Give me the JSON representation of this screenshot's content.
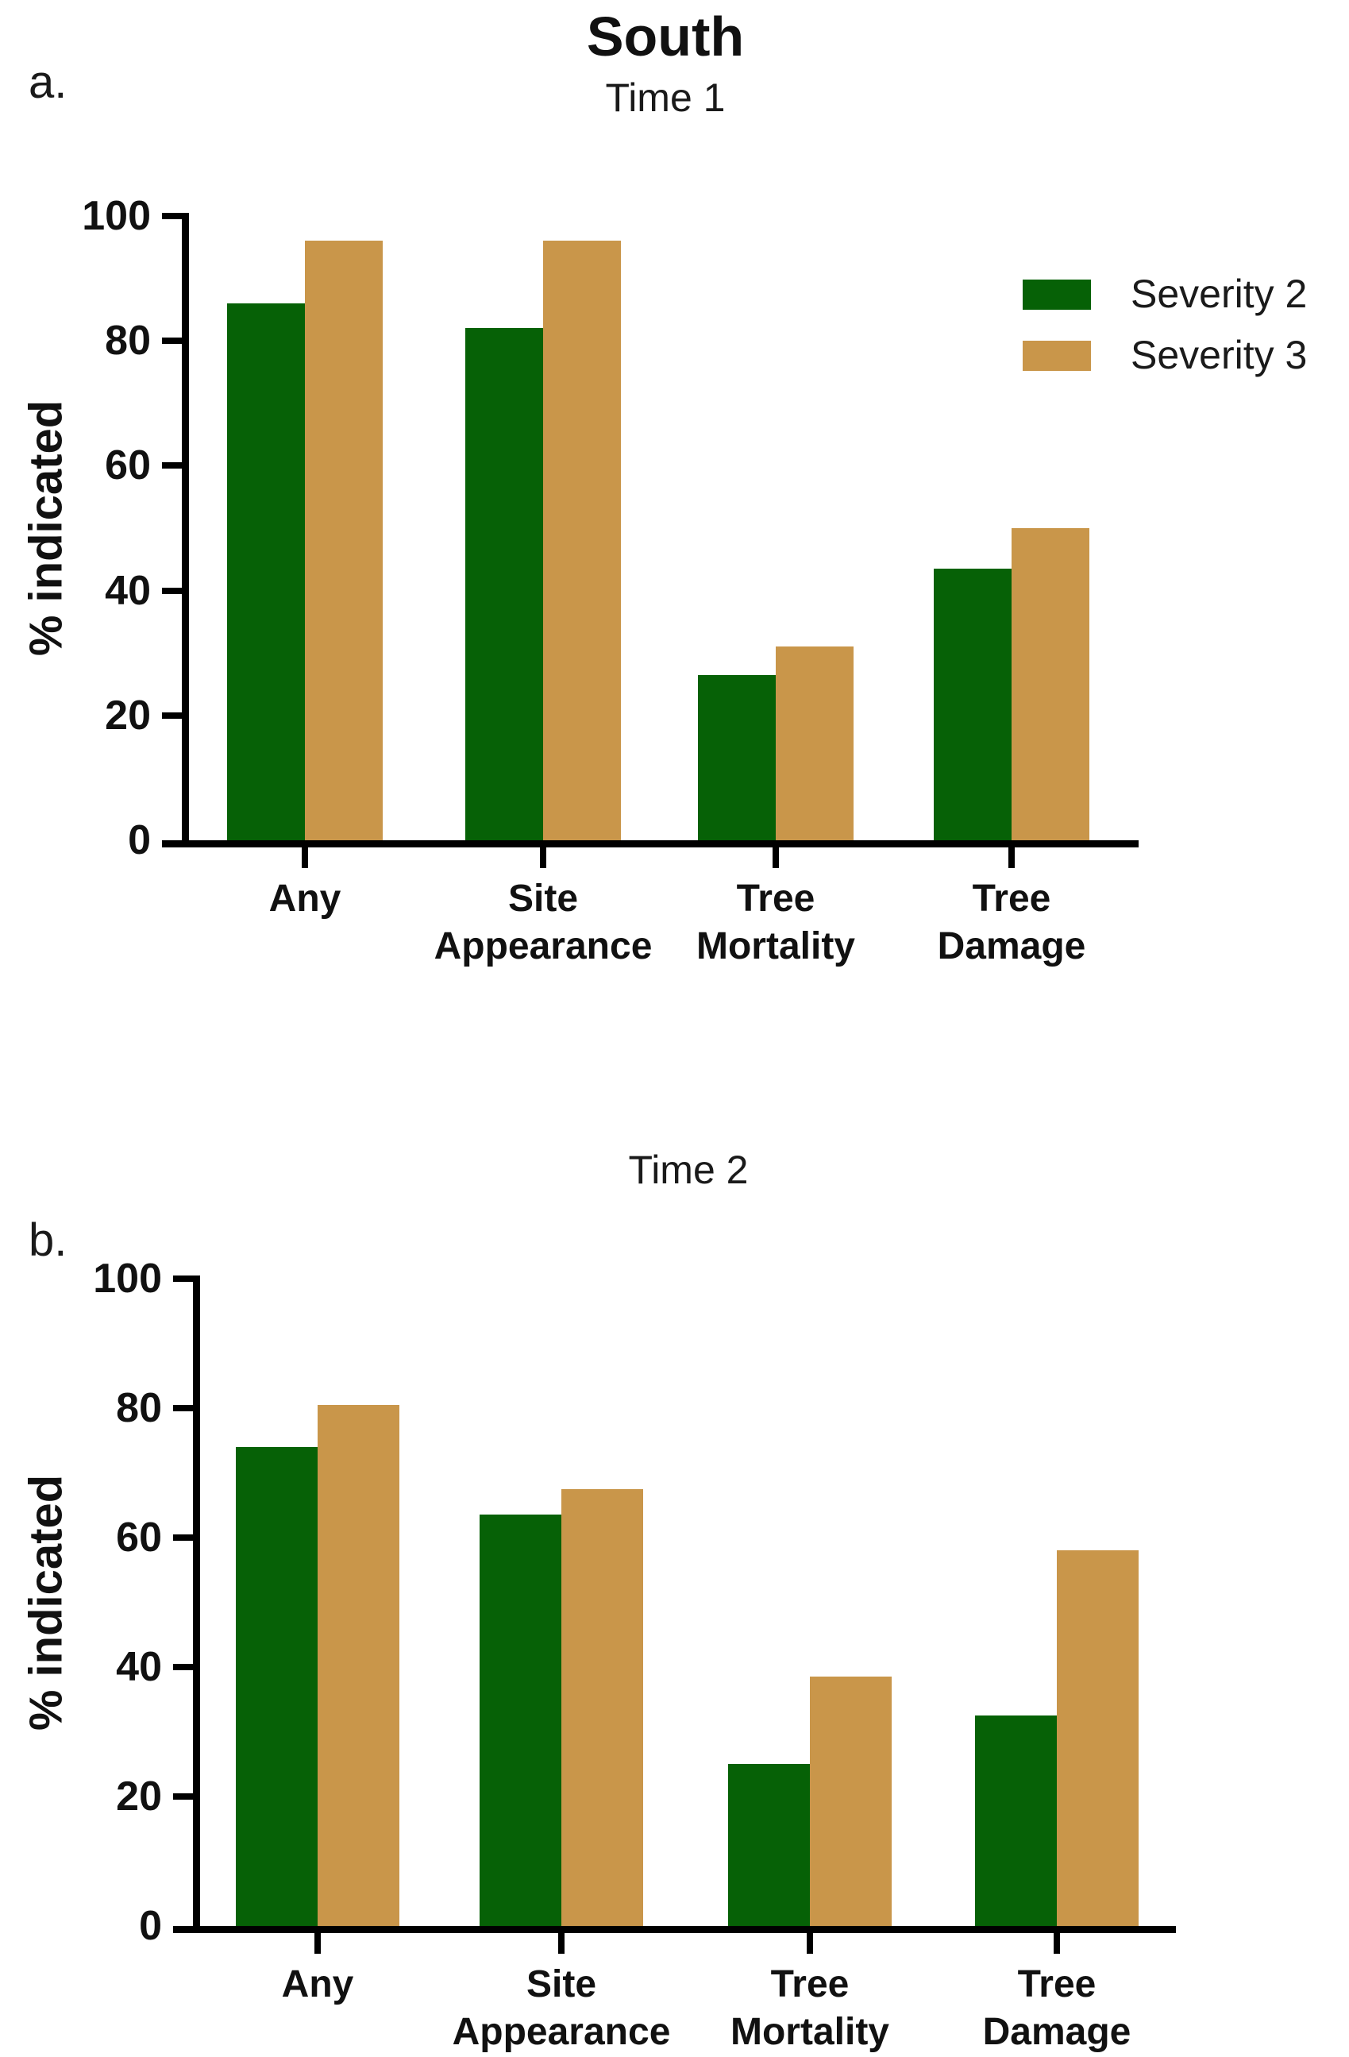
{
  "panels": [
    {
      "label": "a."
    },
    {
      "label": "b."
    }
  ],
  "colors": {
    "severity2": "#066106",
    "severity3": "#c9964a",
    "axis": "#000000",
    "text": "#111111"
  },
  "chart_data": [
    {
      "type": "bar",
      "title": "South",
      "subtitle": "Time 1",
      "ylabel": "% indicated",
      "ylim": [
        0,
        100
      ],
      "yticks": [
        0,
        20,
        40,
        60,
        80,
        100
      ],
      "grid": false,
      "legend_position": "upper-right",
      "categories": [
        "Any",
        "Site Appearance",
        "Tree Mortality",
        "Tree Damage"
      ],
      "series": [
        {
          "name": "Severity 2",
          "color": "#066106",
          "values": [
            86,
            82,
            26.5,
            43.5
          ]
        },
        {
          "name": "Severity 3",
          "color": "#c9964a",
          "values": [
            96,
            96,
            31,
            50
          ]
        }
      ]
    },
    {
      "type": "bar",
      "subtitle": "Time 2",
      "ylabel": "% indicated",
      "ylim": [
        0,
        100
      ],
      "yticks": [
        0,
        20,
        40,
        60,
        80,
        100
      ],
      "grid": false,
      "legend_position": "none",
      "categories": [
        "Any",
        "Site Appearance",
        "Tree Mortality",
        "Tree Damage"
      ],
      "series": [
        {
          "name": "Severity 2",
          "color": "#066106",
          "values": [
            74,
            63.5,
            25,
            32.5
          ]
        },
        {
          "name": "Severity 3",
          "color": "#c9964a",
          "values": [
            80.5,
            67.5,
            38.5,
            58
          ]
        }
      ]
    }
  ]
}
